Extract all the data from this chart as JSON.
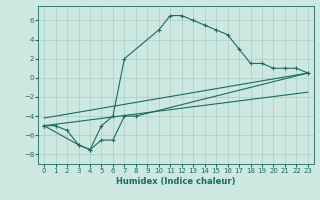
{
  "xlabel": "Humidex (Indice chaleur)",
  "ylabel": "",
  "bg_color": "#cce8e0",
  "grid_color": "#aacfc8",
  "line_color": "#1a6b5e",
  "xlim": [
    -0.5,
    23.5
  ],
  "ylim": [
    -9,
    7.5
  ],
  "xticks": [
    0,
    1,
    2,
    3,
    4,
    5,
    6,
    7,
    8,
    9,
    10,
    11,
    12,
    13,
    14,
    15,
    16,
    17,
    18,
    19,
    20,
    21,
    22,
    23
  ],
  "yticks": [
    -8,
    -6,
    -4,
    -2,
    0,
    2,
    4,
    6
  ],
  "series1_x": [
    0,
    1,
    2,
    3,
    4,
    5,
    6,
    7,
    10,
    11,
    12,
    13,
    14,
    15,
    16,
    17,
    18,
    19,
    20,
    21,
    22,
    23
  ],
  "series1_y": [
    -5,
    -5,
    -5.5,
    -7,
    -7.5,
    -5,
    -4,
    2,
    5,
    6.5,
    6.5,
    6,
    5.5,
    5,
    4.5,
    3,
    1.5,
    1.5,
    1,
    1,
    1,
    0.5
  ],
  "series2_x": [
    0,
    3,
    4,
    5,
    6,
    7,
    8,
    23
  ],
  "series2_y": [
    -5,
    -7,
    -7.5,
    -6.5,
    -6.5,
    -4,
    -4,
    0.5
  ],
  "line1_x": [
    0,
    23
  ],
  "line1_y": [
    -5,
    -1.5
  ],
  "line2_x": [
    0,
    23
  ],
  "line2_y": [
    -4.2,
    0.5
  ]
}
